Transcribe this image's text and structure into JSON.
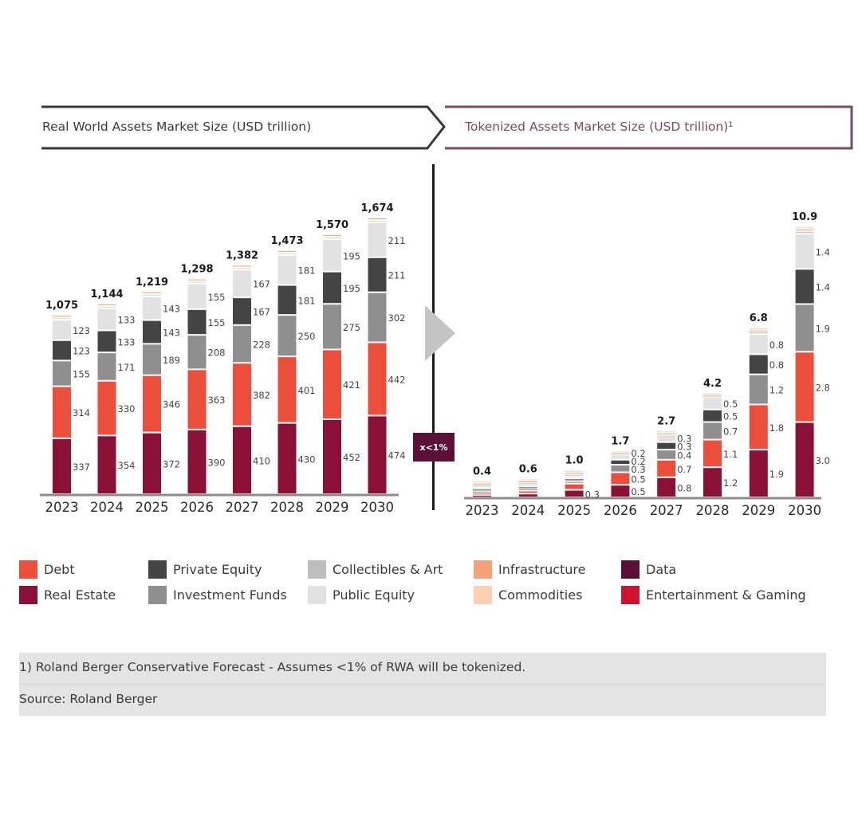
{
  "headers": {
    "left": "Real World Assets Market Size (USD trillion)",
    "right": "Tokenized Assets Market Size (USD trillion)¹"
  },
  "badge": "x<1%",
  "colors": {
    "real_estate": "#8a1038",
    "debt": "#eb4f3c",
    "investment_funds": "#8f8f8f",
    "private_equity": "#444444",
    "public_equity": "#e2e2e2",
    "collectibles_art": "#bdbdbd",
    "infrastructure": "#f4a079",
    "commodities": "#fad1b5",
    "data": "#5a0f38",
    "entertainment_gaming": "#d1122f",
    "header_left_border": "#3a3a3a",
    "header_right_border": "#7a4a66",
    "badge_bg": "#5c1038"
  },
  "legend": [
    {
      "label": "Debt",
      "color_key": "debt"
    },
    {
      "label": "Real Estate",
      "color_key": "real_estate"
    },
    {
      "label": "Private Equity",
      "color_key": "private_equity"
    },
    {
      "label": "Investment Funds",
      "color_key": "investment_funds"
    },
    {
      "label": "Collectibles & Art",
      "color_key": "collectibles_art"
    },
    {
      "label": "Public Equity",
      "color_key": "public_equity"
    },
    {
      "label": "Infrastructure",
      "color_key": "infrastructure"
    },
    {
      "label": "Commodities",
      "color_key": "commodities"
    },
    {
      "label": "Data",
      "color_key": "data"
    },
    {
      "label": "Entertainment & Gaming",
      "color_key": "entertainment_gaming"
    }
  ],
  "footnote": {
    "note": "1) Roland Berger Conservative Forecast - Assumes <1% of RWA will be tokenized.",
    "source": "Source: Roland Berger"
  },
  "chart_data": [
    {
      "type": "bar",
      "stacked": true,
      "title": "Real World Assets Market Size (USD trillion)",
      "categories": [
        "2023",
        "2024",
        "2025",
        "2026",
        "2027",
        "2028",
        "2029",
        "2030"
      ],
      "totals": [
        "1,075",
        "1,144",
        "1,219",
        "1,298",
        "1,382",
        "1,473",
        "1,570",
        "1,674"
      ],
      "total_values": [
        1075,
        1144,
        1219,
        1298,
        1382,
        1473,
        1570,
        1674
      ],
      "series": [
        {
          "name": "Real Estate",
          "color_key": "real_estate",
          "values": [
            337,
            354,
            372,
            390,
            410,
            430,
            452,
            474
          ],
          "labels": [
            "337",
            "354",
            "372",
            "390",
            "410",
            "430",
            "452",
            "474"
          ]
        },
        {
          "name": "Debt",
          "color_key": "debt",
          "values": [
            314,
            330,
            346,
            363,
            382,
            401,
            421,
            442
          ],
          "labels": [
            "314",
            "330",
            "346",
            "363",
            "382",
            "401",
            "421",
            "442"
          ]
        },
        {
          "name": "Investment Funds",
          "color_key": "investment_funds",
          "values": [
            155,
            171,
            189,
            208,
            228,
            250,
            275,
            302
          ],
          "labels": [
            "155",
            "171",
            "189",
            "208",
            "228",
            "250",
            "275",
            "302"
          ]
        },
        {
          "name": "Private Equity",
          "color_key": "private_equity",
          "values": [
            123,
            133,
            143,
            155,
            167,
            181,
            195,
            211
          ],
          "labels": [
            "123",
            "133",
            "143",
            "155",
            "167",
            "181",
            "195",
            "211"
          ]
        },
        {
          "name": "Public Equity",
          "color_key": "public_equity",
          "values": [
            123,
            133,
            143,
            155,
            167,
            181,
            195,
            211
          ],
          "labels": [
            "123",
            "133",
            "143",
            "155",
            "167",
            "181",
            "195",
            "211"
          ]
        },
        {
          "name": "Commodities",
          "color_key": "commodities",
          "values": [
            8,
            8,
            8,
            8,
            8,
            8,
            8,
            8
          ],
          "labels": [
            "",
            "",
            "",
            "",
            "",
            "",
            "",
            ""
          ]
        },
        {
          "name": "Infrastructure",
          "color_key": "infrastructure",
          "values": [
            8,
            8,
            8,
            8,
            8,
            8,
            8,
            8
          ],
          "labels": [
            "",
            "",
            "",
            "",
            "",
            "",
            "",
            ""
          ]
        }
      ],
      "xlabel": "",
      "ylabel": "",
      "grid": false,
      "legend": "bottom"
    },
    {
      "type": "bar",
      "stacked": true,
      "title": "Tokenized Assets Market Size (USD trillion)",
      "categories": [
        "2023",
        "2024",
        "2025",
        "2026",
        "2027",
        "2028",
        "2029",
        "2030"
      ],
      "totals": [
        "0.4",
        "0.6",
        "1.0",
        "1.7",
        "2.7",
        "4.2",
        "6.8",
        "10.9"
      ],
      "total_values": [
        0.4,
        0.6,
        1.0,
        1.7,
        2.7,
        4.2,
        6.8,
        10.9
      ],
      "series": [
        {
          "name": "Real Estate",
          "color_key": "real_estate",
          "values": [
            0.1,
            0.15,
            0.3,
            0.5,
            0.8,
            1.2,
            1.9,
            3.0
          ],
          "labels": [
            "",
            "",
            "0.3",
            "0.5",
            "0.8",
            "1.2",
            "1.9",
            "3.0"
          ]
        },
        {
          "name": "Debt",
          "color_key": "debt",
          "values": [
            0.07,
            0.12,
            0.25,
            0.5,
            0.7,
            1.1,
            1.8,
            2.8
          ],
          "labels": [
            "",
            "",
            "",
            "0.5",
            "0.7",
            "1.1",
            "1.8",
            "2.8"
          ]
        },
        {
          "name": "Investment Funds",
          "color_key": "investment_funds",
          "values": [
            0.05,
            0.08,
            0.1,
            0.3,
            0.4,
            0.7,
            1.2,
            1.9
          ],
          "labels": [
            "",
            "",
            "",
            "0.3",
            "0.4",
            "0.7",
            "1.2",
            "1.9"
          ]
        },
        {
          "name": "Private Equity",
          "color_key": "private_equity",
          "values": [
            0.04,
            0.06,
            0.1,
            0.2,
            0.3,
            0.5,
            0.8,
            1.4
          ],
          "labels": [
            "",
            "",
            "",
            "0.2",
            "0.3",
            "0.5",
            "0.8",
            "1.4"
          ]
        },
        {
          "name": "Public Equity",
          "color_key": "public_equity",
          "values": [
            0.04,
            0.06,
            0.1,
            0.2,
            0.3,
            0.5,
            0.8,
            1.4
          ],
          "labels": [
            "",
            "",
            "",
            "0.2",
            "0.3",
            "0.5",
            "0.8",
            "1.4"
          ]
        },
        {
          "name": "Collectibles & Art",
          "color_key": "collectibles_art",
          "values": [
            0.03,
            0.04,
            0.05,
            0.0,
            0.0,
            0.0,
            0.1,
            0.1
          ],
          "labels": [
            "",
            "",
            "",
            "",
            "",
            "",
            "",
            ""
          ]
        },
        {
          "name": "Infrastructure",
          "color_key": "infrastructure",
          "values": [
            0.01,
            0.02,
            0.03,
            0.03,
            0.04,
            0.05,
            0.05,
            0.1
          ],
          "labels": [
            "",
            "",
            "",
            "",
            "",
            "",
            "",
            ""
          ]
        },
        {
          "name": "Commodities",
          "color_key": "commodities",
          "values": [
            0.01,
            0.01,
            0.02,
            0.03,
            0.04,
            0.05,
            0.05,
            0.1
          ],
          "labels": [
            "",
            "",
            "",
            "",
            "",
            "",
            "",
            ""
          ]
        }
      ],
      "xlabel": "",
      "ylabel": "",
      "grid": false,
      "legend": "bottom"
    }
  ]
}
